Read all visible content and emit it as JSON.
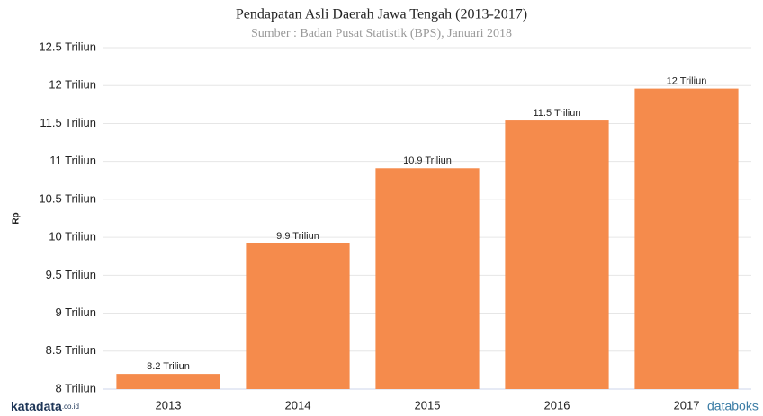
{
  "chart_data": {
    "type": "bar",
    "title": "Pendapatan Asli Daerah Jawa Tengah (2013-2017)",
    "subtitle": "Sumber : Badan Pusat Statistik (BPS), Januari 2018",
    "y_label": "Rp",
    "categories": [
      "2013",
      "2014",
      "2015",
      "2016",
      "2017"
    ],
    "values": [
      8.2,
      9.92,
      10.91,
      11.54,
      11.96
    ],
    "value_labels": [
      "8.2 Triliun",
      "9.9 Triliun",
      "10.9 Triliun",
      "11.5 Triliun",
      "12 Triliun"
    ],
    "color": "#f58b4c",
    "ylim": [
      8,
      12.5
    ],
    "yticks": [
      {
        "value": 8,
        "label": "8 Triliun"
      },
      {
        "value": 8.5,
        "label": "8.5 Triliun"
      },
      {
        "value": 9,
        "label": "9 Triliun"
      },
      {
        "value": 9.5,
        "label": "9.5 Triliun"
      },
      {
        "value": 10,
        "label": "10 Triliun"
      },
      {
        "value": 10.5,
        "label": "10.5 Triliun"
      },
      {
        "value": 11,
        "label": "11 Triliun"
      },
      {
        "value": 11.5,
        "label": "11.5 Triliun"
      },
      {
        "value": 12,
        "label": "12 Triliun"
      },
      {
        "value": 12.5,
        "label": "12.5 Triliun"
      }
    ],
    "grid": true
  },
  "branding": {
    "left": "katadata",
    "left_suffix": ".co.id",
    "right": "databoks"
  }
}
